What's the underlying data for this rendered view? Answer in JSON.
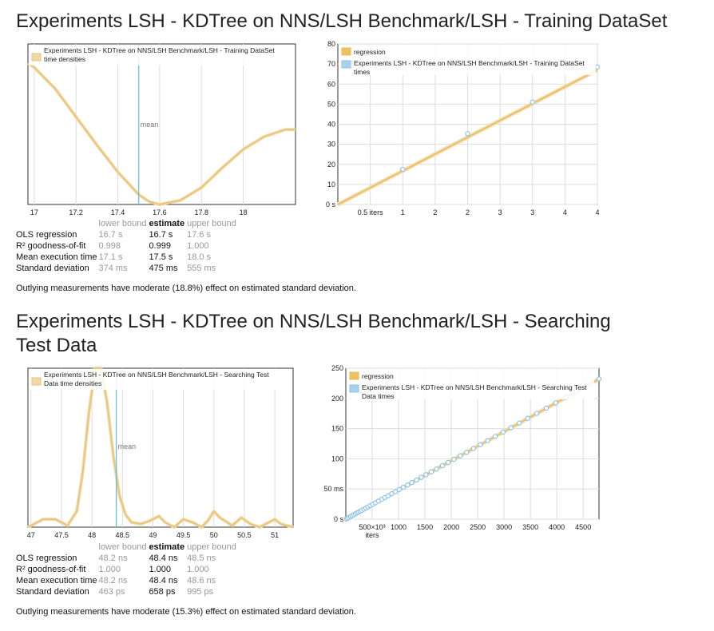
{
  "sections": [
    {
      "title": "Experiments LSH - KDTree on NNS/LSH Benchmark/LSH - Training DataSet",
      "pdf": {
        "legend": "Experiments LSH - KDTree on NNS/LSH Benchmark/LSH - Training DataSet time densities",
        "mean_label": "mean",
        "x_ticks": [
          "17",
          "17.2",
          "17.4",
          "17.6",
          "17.8",
          "18"
        ]
      },
      "regression": {
        "legend_regression": "regression",
        "legend_times": "Experiments LSH - KDTree on NNS/LSH Benchmark/LSH - Training DataSet times",
        "y_ticks": [
          "0 s",
          "10",
          "20",
          "30",
          "40",
          "50",
          "60",
          "70",
          "80"
        ],
        "x_ticks": [
          "0.5 iters",
          "1",
          "2",
          "2",
          "3",
          "3",
          "4",
          "4"
        ]
      },
      "stats": {
        "headers": [
          "lower bound",
          "estimate",
          "upper bound"
        ],
        "rows": [
          {
            "label": "OLS regression",
            "lb": "16.7 s",
            "est": "16.7 s",
            "ub": "17.6 s"
          },
          {
            "label": "R² goodness-of-fit",
            "lb": "0.998",
            "est": "0.999",
            "ub": "1.000"
          },
          {
            "label": "Mean execution time",
            "lb": "17.1 s",
            "est": "17.5 s",
            "ub": "18.0 s"
          },
          {
            "label": "Standard deviation",
            "lb": "374 ms",
            "est": "475 ms",
            "ub": "555 ms"
          }
        ]
      },
      "note": "Outlying measurements have moderate (18.8%) effect on estimated standard deviation."
    },
    {
      "title": "Experiments LSH - KDTree on NNS/LSH Benchmark/LSH - Searching Test Data",
      "pdf": {
        "legend": "Experiments LSH - KDTree on NNS/LSH Benchmark/LSH - Searching Test Data time densities",
        "mean_label": "mean",
        "x_ticks": [
          "47",
          "47.5",
          "48",
          "48.5",
          "49",
          "49.5",
          "50",
          "50.5",
          "51"
        ]
      },
      "regression": {
        "legend_regression": "regression",
        "legend_times": "Experiments LSH - KDTree on NNS/LSH Benchmark/LSH - Searching Test Data times",
        "y_ticks": [
          "0 s",
          "50 ms",
          "100",
          "150",
          "200",
          "250"
        ],
        "x_ticks": [
          "500×10³ iters",
          "1000",
          "1500",
          "2000",
          "2500",
          "3000",
          "3500",
          "4000",
          "4500"
        ]
      },
      "stats": {
        "headers": [
          "lower bound",
          "estimate",
          "upper bound"
        ],
        "rows": [
          {
            "label": "OLS regression",
            "lb": "48.2 ns",
            "est": "48.4 ns",
            "ub": "48.5 ns"
          },
          {
            "label": "R² goodness-of-fit",
            "lb": "1.000",
            "est": "1.000",
            "ub": "1.000"
          },
          {
            "label": "Mean execution time",
            "lb": "48.2 ns",
            "est": "48.4 ns",
            "ub": "48.6 ns"
          },
          {
            "label": "Standard deviation",
            "lb": "463 ps",
            "est": "658 ps",
            "ub": "995 ps"
          }
        ]
      },
      "note": "Outlying measurements have moderate (15.3%) effect on estimated standard deviation."
    }
  ],
  "colors": {
    "density": "#e8c27a",
    "density_fill": "#f1d9a5",
    "mean": "#5bc0de",
    "point": "#8ec3ea",
    "regression": "#e8b85a",
    "grid": "#dddddd"
  },
  "chart_data": [
    {
      "type": "line",
      "title": "",
      "xlabel": "",
      "ylabel": "",
      "xlim": [
        16.97,
        18.25
      ],
      "x": [
        16.97,
        17.0,
        17.1,
        17.2,
        17.3,
        17.4,
        17.5,
        17.55,
        17.6,
        17.7,
        17.8,
        17.9,
        18.0,
        18.1,
        18.2,
        18.25
      ],
      "y": [
        1.0,
        0.97,
        0.82,
        0.62,
        0.42,
        0.23,
        0.07,
        0.02,
        0.0,
        0.03,
        0.12,
        0.26,
        0.39,
        0.48,
        0.53,
        0.53
      ],
      "mean": 17.5,
      "series": [
        {
          "name": "Experiments LSH - KDTree on NNS/LSH Benchmark/LSH - Training DataSet time densities"
        }
      ]
    },
    {
      "type": "scatter",
      "xlim": [
        0,
        4
      ],
      "ylim": [
        0,
        80
      ],
      "points_x": [
        1,
        2,
        3,
        4
      ],
      "points_y": [
        17.5,
        35.3,
        51.0,
        68.5
      ],
      "regression_y_at_xmax": 67,
      "series": [
        {
          "name": "regression"
        },
        {
          "name": "Experiments LSH - KDTree on NNS/LSH Benchmark/LSH - Training DataSet times"
        }
      ]
    },
    {
      "type": "line",
      "xlim": [
        46.95,
        51.3
      ],
      "x": [
        46.95,
        47.2,
        47.4,
        47.6,
        47.75,
        47.85,
        47.95,
        48.05,
        48.15,
        48.25,
        48.35,
        48.45,
        48.55,
        48.65,
        48.8,
        48.95,
        49.1,
        49.2,
        49.35,
        49.5,
        49.65,
        49.8,
        49.9,
        50.0,
        50.1,
        50.3,
        50.45,
        50.6,
        50.75,
        50.9,
        51.0,
        51.1,
        51.3
      ],
      "y": [
        0.0,
        0.05,
        0.05,
        0.01,
        0.1,
        0.35,
        0.72,
        1.0,
        1.0,
        0.78,
        0.45,
        0.2,
        0.08,
        0.03,
        0.02,
        0.04,
        0.07,
        0.03,
        0.0,
        0.05,
        0.03,
        0.0,
        0.04,
        0.1,
        0.06,
        0.01,
        0.06,
        0.02,
        0.0,
        0.03,
        0.05,
        0.02,
        0.0
      ],
      "mean": 48.4,
      "series": [
        {
          "name": "Experiments LSH - KDTree on NNS/LSH Benchmark/LSH - Searching Test Data time densities"
        }
      ]
    },
    {
      "type": "scatter",
      "xlim": [
        0,
        4800
      ],
      "ylim": [
        0,
        250
      ],
      "points_x": [
        10,
        30,
        60,
        90,
        120,
        150,
        180,
        210,
        240,
        270,
        300,
        340,
        380,
        420,
        460,
        510,
        560,
        620,
        680,
        740,
        800,
        870,
        940,
        1010,
        1090,
        1170,
        1250,
        1340,
        1430,
        1520,
        1620,
        1720,
        1830,
        1940,
        2050,
        2170,
        2290,
        2420,
        2550,
        2690,
        2830,
        2980,
        3130,
        3290,
        3450,
        3620,
        3800,
        3980,
        4170,
        4370,
        4580,
        4800
      ],
      "points_y": [
        0.5,
        1.5,
        3,
        4.4,
        5.8,
        7.3,
        8.7,
        10.2,
        11.6,
        13.1,
        14.5,
        16.5,
        18.4,
        20.3,
        22.3,
        24.7,
        27.1,
        30.0,
        32.9,
        35.8,
        38.7,
        42.1,
        45.5,
        48.9,
        52.8,
        56.6,
        60.5,
        64.9,
        69.2,
        73.6,
        78.4,
        83.2,
        88.6,
        93.9,
        99.2,
        105.0,
        110.8,
        117.1,
        123.4,
        130.2,
        137.0,
        144.2,
        151.5,
        159.2,
        167.0,
        175.2,
        183.9,
        192.6,
        201.8,
        211.5,
        221.7,
        232.3
      ],
      "regression_y_at_xmax": 232,
      "series": [
        {
          "name": "regression"
        },
        {
          "name": "Experiments LSH - KDTree on NNS/LSH Benchmark/LSH - Searching Test Data times"
        }
      ]
    }
  ]
}
